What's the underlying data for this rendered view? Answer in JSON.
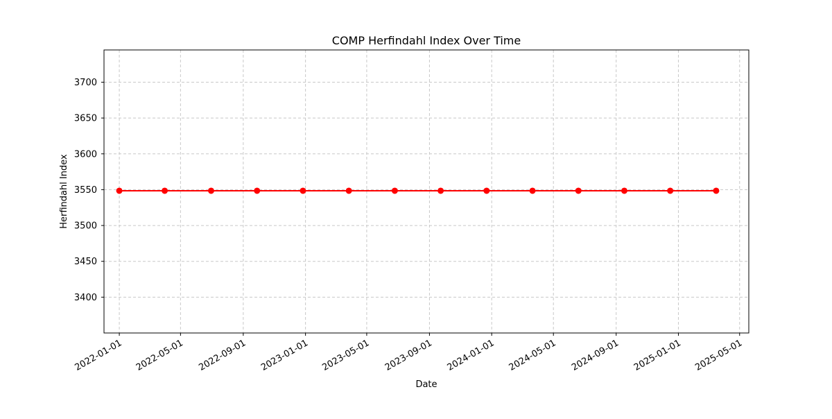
{
  "chart_data": {
    "type": "line",
    "title": "COMP Herfindahl Index Over Time",
    "xlabel": "Date",
    "ylabel": "Herfindahl Index",
    "x_tick_labels": [
      "2022-01-01",
      "2022-05-01",
      "2022-09-01",
      "2023-01-01",
      "2023-05-01",
      "2023-09-01",
      "2024-01-01",
      "2024-05-01",
      "2024-09-01",
      "2025-01-01",
      "2025-05-01"
    ],
    "y_ticks": [
      3400,
      3450,
      3500,
      3550,
      3600,
      3650,
      3700
    ],
    "ylim": [
      3350,
      3745
    ],
    "xlim": [
      "2021-12-02",
      "2025-05-19"
    ],
    "grid": true,
    "grid_style": "dashed",
    "series": [
      {
        "color": "#ff0000",
        "marker": "circle",
        "x": [
          "2022-01-01",
          "2022-03-31",
          "2022-06-30",
          "2022-09-28",
          "2022-12-27",
          "2023-03-27",
          "2023-06-25",
          "2023-09-23",
          "2023-12-22",
          "2024-03-21",
          "2024-06-19",
          "2024-09-17",
          "2024-12-16",
          "2025-03-16"
        ],
        "values": [
          3548.5,
          3548.5,
          3548.5,
          3548.5,
          3548.5,
          3548.5,
          3548.5,
          3548.5,
          3548.5,
          3548.5,
          3548.5,
          3548.5,
          3548.5,
          3548.5
        ]
      }
    ]
  }
}
